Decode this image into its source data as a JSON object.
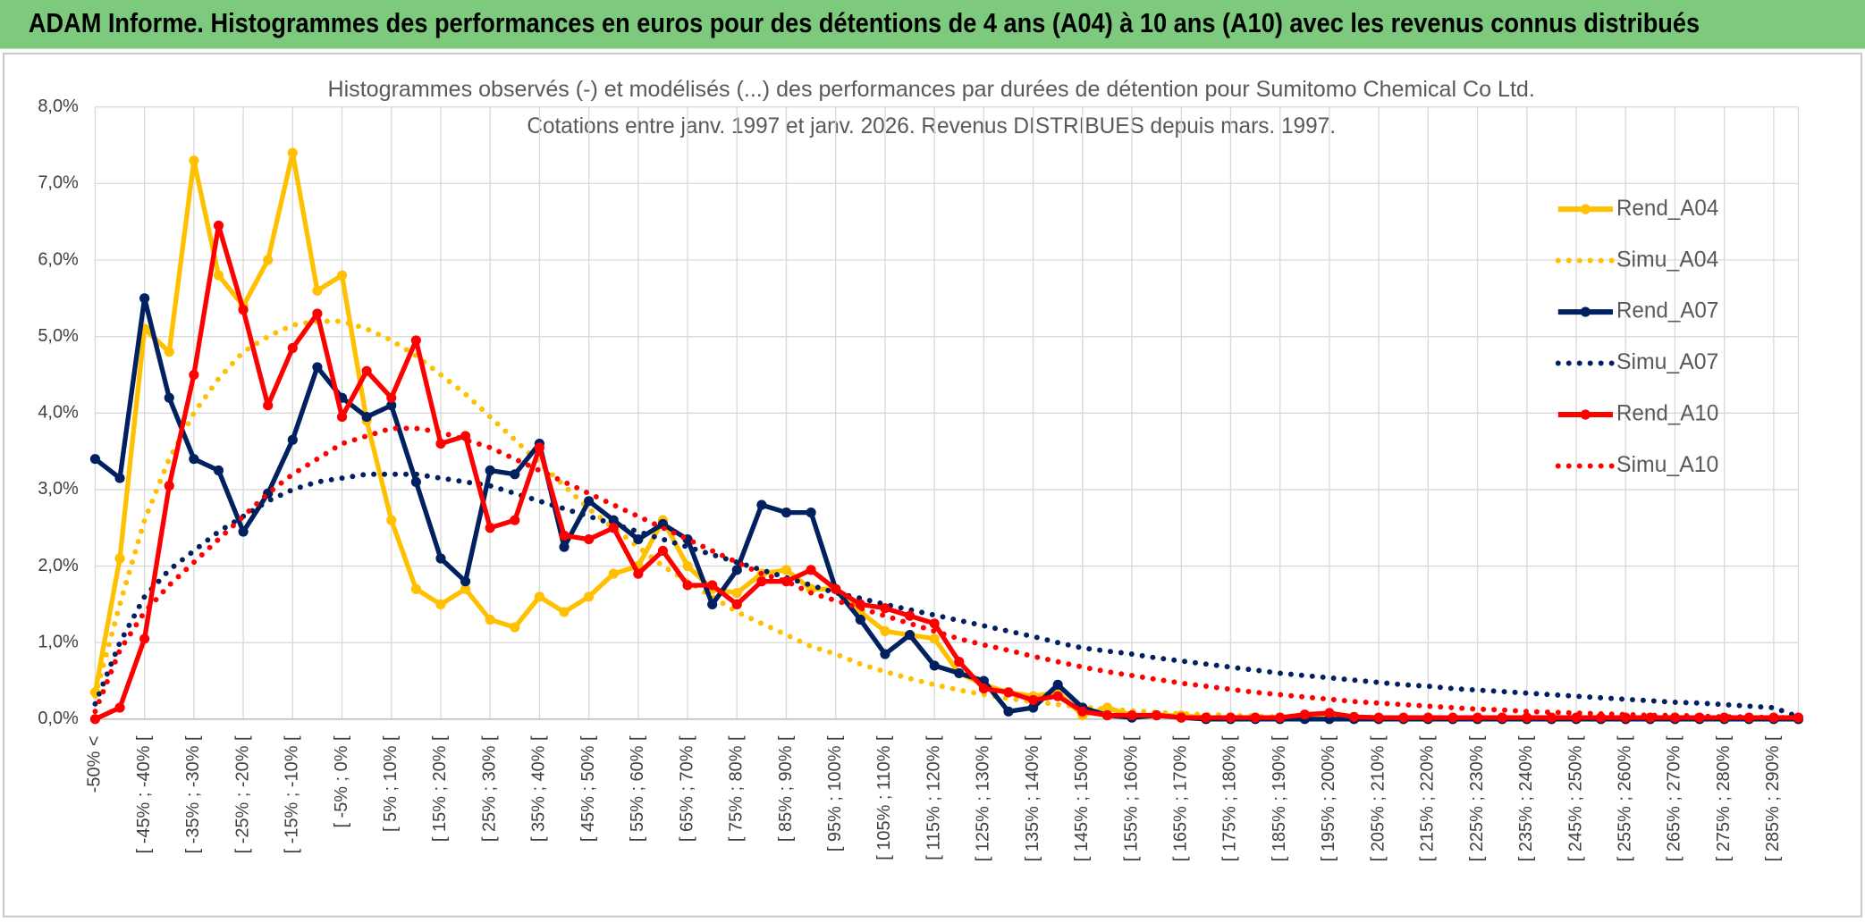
{
  "header": {
    "title": "ADAM Informe. Histogrammes des performances en euros pour des détentions de 4 ans (A04) à 10 ans (A10) avec les revenus connus distribués"
  },
  "chart_data": {
    "type": "line",
    "title": "Histogrammes observés (-) et modélisés (...) des performances par durées de détention pour Sumitomo Chemical Co Ltd.",
    "subtitle": "Cotations entre janv. 1997 et janv. 2026. Revenus DISTRIBUES depuis mars. 1997.",
    "categories": [
      "-50% <",
      null,
      "[ -45% ; -40% [",
      null,
      "[ -35% ; -30% [",
      null,
      "[ -25% ; -20% [",
      null,
      "[ -15% ; -10% [",
      null,
      "[ -5% ; 0% [",
      null,
      "[ 5% ; 10% [",
      null,
      "[ 15% ; 20% [",
      null,
      "[ 25% ; 30% [",
      null,
      "[ 35% ; 40% [",
      null,
      "[ 45% ; 50% [",
      null,
      "[ 55% ; 60% [",
      null,
      "[ 65% ; 70% [",
      null,
      "[ 75% ; 80% [",
      null,
      "[ 85% ; 90% [",
      null,
      "[ 95% ; 100% [",
      null,
      "[ 105% ; 110% [",
      null,
      "[ 115% ; 120% [",
      null,
      "[ 125% ; 130% [",
      null,
      "[ 135% ; 140% [",
      null,
      "[ 145% ; 150% [",
      null,
      "[ 155% ; 160% [",
      null,
      "[ 165% ; 170% [",
      null,
      "[ 175% ; 180% [",
      null,
      "[ 185% ; 190% [",
      null,
      "[ 195% ; 200% [",
      null,
      "[ 205% ; 210% [",
      null,
      "[ 215% ; 220% [",
      null,
      "[ 225% ; 230% [",
      null,
      "[ 235% ; 240% [",
      null,
      "[ 245% ; 250% [",
      null,
      "[ 255% ; 260% [",
      null,
      "[ 265% ; 270% [",
      null,
      "[ 275% ; 280% [",
      null,
      "[ 285% ; 290% [",
      null
    ],
    "series": [
      {
        "name": "Rend_A04",
        "color": "#FFC000",
        "dash": "solid",
        "markers": true,
        "values": [
          0.35,
          2.1,
          5.1,
          4.8,
          7.3,
          5.8,
          5.4,
          6.0,
          7.4,
          5.6,
          5.8,
          3.9,
          2.6,
          1.7,
          1.5,
          1.7,
          1.3,
          1.2,
          1.6,
          1.4,
          1.6,
          1.9,
          2.0,
          2.6,
          2.0,
          1.7,
          1.65,
          1.9,
          1.95,
          1.7,
          1.7,
          1.4,
          1.15,
          1.1,
          1.05,
          0.6,
          0.45,
          0.35,
          0.3,
          0.35,
          0.05,
          0.15,
          0.05,
          0.05,
          0.05,
          0.02,
          0.02,
          0.02,
          0.02,
          0.02,
          0.02,
          0,
          0,
          0,
          0,
          0,
          0,
          0,
          0,
          0,
          0,
          0,
          0,
          0,
          0,
          0,
          0,
          0,
          0,
          0
        ]
      },
      {
        "name": "Simu_A04",
        "color": "#FFC000",
        "dash": "dotted",
        "markers": false,
        "values": [
          0.3,
          1.5,
          2.6,
          3.4,
          4.0,
          4.45,
          4.8,
          5.0,
          5.15,
          5.2,
          5.2,
          5.1,
          4.95,
          4.75,
          4.5,
          4.25,
          3.95,
          3.65,
          3.35,
          3.05,
          2.75,
          2.5,
          2.25,
          2.0,
          1.8,
          1.6,
          1.4,
          1.25,
          1.1,
          0.95,
          0.85,
          0.72,
          0.62,
          0.53,
          0.45,
          0.38,
          0.32,
          0.27,
          0.23,
          0.19,
          0.16,
          0.13,
          0.11,
          0.09,
          0.07,
          0.06,
          0.05,
          0.04,
          0.03,
          0.03,
          0.02,
          0.01,
          0.01,
          0.01,
          0.01,
          0.01,
          0.01,
          0.01,
          0.01,
          0.01,
          0.01,
          0.01,
          0.01,
          0.01,
          0.01,
          0.01,
          0.01,
          0.01,
          0.01,
          0.01
        ]
      },
      {
        "name": "Rend_A07",
        "color": "#002060",
        "dash": "solid",
        "markers": true,
        "values": [
          3.4,
          3.15,
          5.5,
          4.2,
          3.4,
          3.25,
          2.45,
          2.95,
          3.65,
          4.6,
          4.2,
          3.95,
          4.1,
          3.1,
          2.1,
          1.8,
          3.25,
          3.2,
          3.6,
          2.25,
          2.85,
          2.6,
          2.35,
          2.55,
          2.35,
          1.5,
          1.95,
          2.8,
          2.7,
          2.7,
          1.7,
          1.3,
          0.85,
          1.1,
          0.7,
          0.6,
          0.5,
          0.1,
          0.15,
          0.45,
          0.15,
          0.05,
          0.02,
          0.05,
          0.02,
          0,
          0,
          0,
          0,
          0,
          0,
          0,
          0,
          0,
          0,
          0,
          0,
          0,
          0,
          0,
          0,
          0,
          0,
          0,
          0,
          0,
          0,
          0,
          0,
          0
        ]
      },
      {
        "name": "Simu_A07",
        "color": "#002060",
        "dash": "dotted",
        "markers": false,
        "values": [
          0.2,
          1.0,
          1.6,
          1.95,
          2.2,
          2.45,
          2.65,
          2.85,
          3.0,
          3.1,
          3.15,
          3.2,
          3.2,
          3.2,
          3.15,
          3.1,
          3.05,
          2.95,
          2.85,
          2.75,
          2.65,
          2.55,
          2.45,
          2.35,
          2.25,
          2.15,
          2.05,
          1.95,
          1.85,
          1.75,
          1.65,
          1.58,
          1.5,
          1.43,
          1.36,
          1.29,
          1.22,
          1.15,
          1.08,
          1.0,
          0.93,
          0.89,
          0.85,
          0.8,
          0.76,
          0.72,
          0.68,
          0.64,
          0.6,
          0.57,
          0.54,
          0.51,
          0.48,
          0.45,
          0.43,
          0.4,
          0.38,
          0.36,
          0.34,
          0.32,
          0.3,
          0.28,
          0.26,
          0.24,
          0.22,
          0.21,
          0.19,
          0.17,
          0.15,
          0.03
        ]
      },
      {
        "name": "Rend_A10",
        "color": "#FF0000",
        "dash": "solid",
        "markers": true,
        "values": [
          0,
          0.15,
          1.05,
          3.05,
          4.5,
          6.45,
          5.35,
          4.1,
          4.85,
          5.3,
          3.95,
          4.55,
          4.2,
          4.95,
          3.6,
          3.7,
          2.5,
          2.6,
          3.55,
          2.4,
          2.35,
          2.5,
          1.9,
          2.2,
          1.75,
          1.75,
          1.5,
          1.8,
          1.8,
          1.95,
          1.7,
          1.5,
          1.45,
          1.35,
          1.25,
          0.75,
          0.4,
          0.35,
          0.25,
          0.3,
          0.1,
          0.05,
          0.05,
          0.05,
          0.02,
          0.02,
          0.02,
          0.02,
          0.02,
          0.06,
          0.08,
          0.03,
          0.02,
          0.02,
          0.02,
          0.02,
          0.02,
          0.02,
          0.02,
          0.02,
          0.02,
          0.02,
          0.02,
          0.02,
          0.02,
          0.02,
          0.02,
          0.02,
          0.02,
          0.02
        ]
      },
      {
        "name": "Simu_A10",
        "color": "#FF0000",
        "dash": "dotted",
        "markers": false,
        "values": [
          0.1,
          0.9,
          1.4,
          1.75,
          2.05,
          2.35,
          2.65,
          2.95,
          3.2,
          3.4,
          3.6,
          3.7,
          3.8,
          3.8,
          3.75,
          3.65,
          3.55,
          3.4,
          3.25,
          3.1,
          2.95,
          2.8,
          2.65,
          2.5,
          2.35,
          2.2,
          2.05,
          1.9,
          1.8,
          1.65,
          1.55,
          1.45,
          1.35,
          1.25,
          1.15,
          1.05,
          0.97,
          0.9,
          0.82,
          0.75,
          0.68,
          0.62,
          0.57,
          0.52,
          0.47,
          0.43,
          0.39,
          0.35,
          0.32,
          0.29,
          0.26,
          0.23,
          0.21,
          0.19,
          0.17,
          0.15,
          0.13,
          0.12,
          0.1,
          0.09,
          0.08,
          0.07,
          0.06,
          0.05,
          0.05,
          0.04,
          0.03,
          0.03,
          0.02,
          0.02
        ]
      }
    ],
    "ylim": [
      0,
      8
    ],
    "yticks": [
      {
        "value": 0,
        "label": "0,0%"
      },
      {
        "value": 1,
        "label": "1,0%"
      },
      {
        "value": 2,
        "label": "2,0%"
      },
      {
        "value": 3,
        "label": "3,0%"
      },
      {
        "value": 4,
        "label": "4,0%"
      },
      {
        "value": 5,
        "label": "5,0%"
      },
      {
        "value": 6,
        "label": "6,0%"
      },
      {
        "value": 7,
        "label": "7,0%"
      },
      {
        "value": 8,
        "label": "8,0%"
      }
    ],
    "grid": true,
    "legend": "right"
  }
}
